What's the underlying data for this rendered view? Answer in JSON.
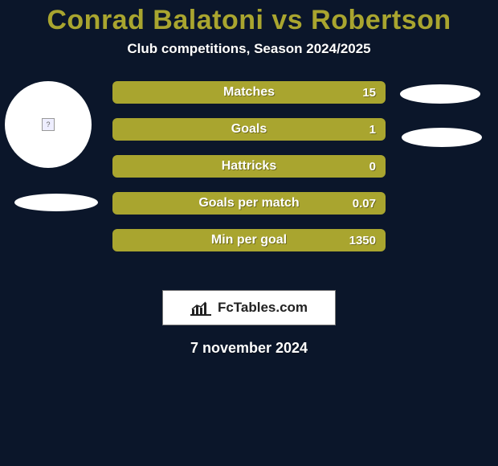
{
  "colors": {
    "background": "#0b162a",
    "title": "#a9a52f",
    "subtitle": "#ffffff",
    "avatar_bg": "#ffffff",
    "shadow": "#ffffff",
    "bar_fill": "#a9a52f",
    "bar_text": "#ffffff",
    "bar_value": "#ffffff",
    "logo_box_bg": "#ffffff",
    "logo_box_border": "#777777",
    "logo_text": "#222222",
    "date_text": "#ffffff"
  },
  "sizes": {
    "title_fontsize": 34,
    "subtitle_fontsize": 17,
    "bar_label_fontsize": 16,
    "bar_value_fontsize": 15,
    "logo_box_width": 216,
    "logo_box_height": 44,
    "logo_text_fontsize": 17,
    "date_fontsize": 18
  },
  "title": "Conrad Balatoni vs Robertson",
  "subtitle": "Club competitions, Season 2024/2025",
  "stats": [
    {
      "label": "Matches",
      "value": "15"
    },
    {
      "label": "Goals",
      "value": "1"
    },
    {
      "label": "Hattricks",
      "value": "0"
    },
    {
      "label": "Goals per match",
      "value": "0.07"
    },
    {
      "label": "Min per goal",
      "value": "1350"
    }
  ],
  "footer": {
    "logo_text": "FcTables.com",
    "date": "7 november 2024"
  }
}
